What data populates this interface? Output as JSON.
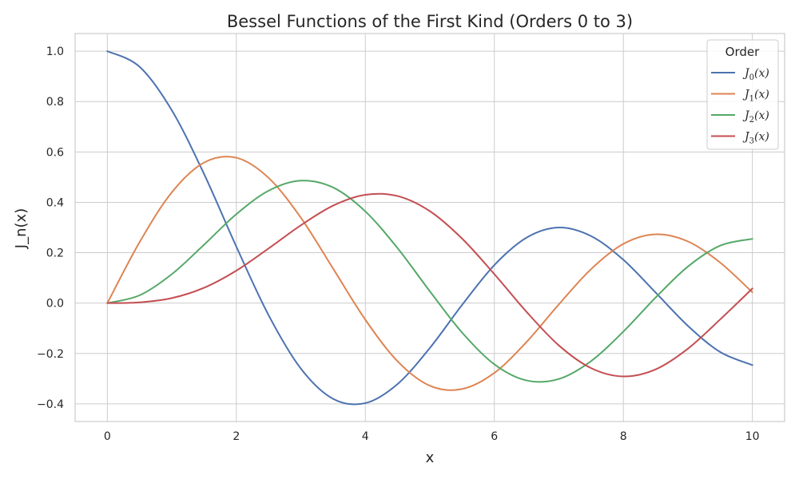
{
  "chart_data": {
    "type": "line",
    "title": "Bessel Functions of the First Kind (Orders 0 to 3)",
    "xlabel": "x",
    "ylabel": "J_n(x)",
    "xlim": [
      -0.5,
      10.5
    ],
    "ylim": [
      -0.47,
      1.07
    ],
    "xticks": [
      0,
      2,
      4,
      6,
      8,
      10
    ],
    "xtick_labels": [
      "0",
      "2",
      "4",
      "6",
      "8",
      "10"
    ],
    "yticks": [
      -0.4,
      -0.2,
      0.0,
      0.2,
      0.4,
      0.6,
      0.8,
      1.0
    ],
    "ytick_labels": [
      "−0.4",
      "−0.2",
      "0.0",
      "0.2",
      "0.4",
      "0.6",
      "0.8",
      "1.0"
    ],
    "grid": true,
    "legend": {
      "title": "Order",
      "placement": "top-right"
    },
    "series": [
      {
        "name": "J0(x)",
        "label_base": "J",
        "label_sub": "0",
        "label_tail": "(x)",
        "color": "#4c72b0",
        "x": [
          0,
          0.5,
          1,
          1.5,
          2,
          2.5,
          3,
          3.5,
          4,
          4.5,
          5,
          5.5,
          6,
          6.5,
          7,
          7.5,
          8,
          8.5,
          9,
          9.5,
          10
        ],
        "y": [
          1.0,
          0.938,
          0.765,
          0.512,
          0.224,
          -0.048,
          -0.26,
          -0.38,
          -0.397,
          -0.321,
          -0.178,
          -0.007,
          0.151,
          0.26,
          0.3,
          0.266,
          0.172,
          0.042,
          -0.09,
          -0.194,
          -0.246
        ]
      },
      {
        "name": "J1(x)",
        "label_base": "J",
        "label_sub": "1",
        "label_tail": "(x)",
        "color": "#dd8452",
        "x": [
          0,
          0.5,
          1,
          1.5,
          2,
          2.5,
          3,
          3.5,
          4,
          4.5,
          5,
          5.5,
          6,
          6.5,
          7,
          7.5,
          8,
          8.5,
          9,
          9.5,
          10
        ],
        "y": [
          0.0,
          0.242,
          0.44,
          0.558,
          0.577,
          0.497,
          0.339,
          0.137,
          -0.066,
          -0.231,
          -0.328,
          -0.341,
          -0.277,
          -0.154,
          -0.005,
          0.135,
          0.235,
          0.273,
          0.245,
          0.161,
          0.043
        ]
      },
      {
        "name": "J2(x)",
        "label_base": "J",
        "label_sub": "2",
        "label_tail": "(x)",
        "color": "#55a868",
        "x": [
          0,
          0.5,
          1,
          1.5,
          2,
          2.5,
          3,
          3.5,
          4,
          4.5,
          5,
          5.5,
          6,
          6.5,
          7,
          7.5,
          8,
          8.5,
          9,
          9.5,
          10
        ],
        "y": [
          0.0,
          0.031,
          0.115,
          0.232,
          0.353,
          0.446,
          0.486,
          0.459,
          0.364,
          0.218,
          0.047,
          -0.117,
          -0.243,
          -0.307,
          -0.301,
          -0.23,
          -0.113,
          0.022,
          0.145,
          0.228,
          0.255
        ]
      },
      {
        "name": "J3(x)",
        "label_base": "J",
        "label_sub": "3",
        "label_tail": "(x)",
        "color": "#c44e52",
        "x": [
          0,
          0.5,
          1,
          1.5,
          2,
          2.5,
          3,
          3.5,
          4,
          4.5,
          5,
          5.5,
          6,
          6.5,
          7,
          7.5,
          8,
          8.5,
          9,
          9.5,
          10
        ],
        "y": [
          0.0,
          0.003,
          0.02,
          0.061,
          0.129,
          0.217,
          0.309,
          0.387,
          0.43,
          0.425,
          0.365,
          0.256,
          0.115,
          -0.035,
          -0.168,
          -0.258,
          -0.291,
          -0.263,
          -0.181,
          -0.065,
          0.058
        ]
      }
    ]
  }
}
